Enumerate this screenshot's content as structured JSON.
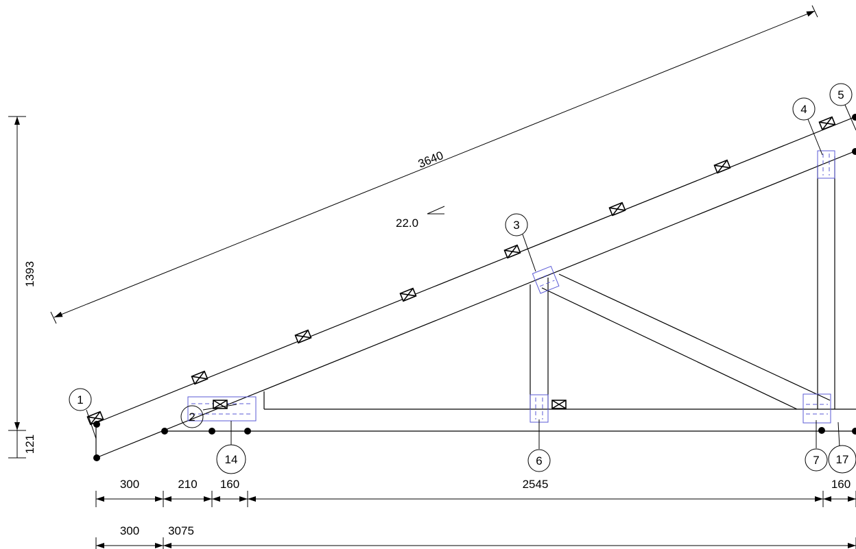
{
  "drawing": {
    "dimensions": {
      "top_chain": [
        "300",
        "210",
        "160",
        "2545",
        "160"
      ],
      "bottom_chain": [
        "300",
        "3075"
      ],
      "rafter_length": "3640",
      "total_height": "1393",
      "heel_height": "121"
    },
    "pitch": "22.0",
    "node_labels": [
      "1",
      "2",
      "3",
      "4",
      "5",
      "6",
      "7",
      "14",
      "17"
    ]
  }
}
